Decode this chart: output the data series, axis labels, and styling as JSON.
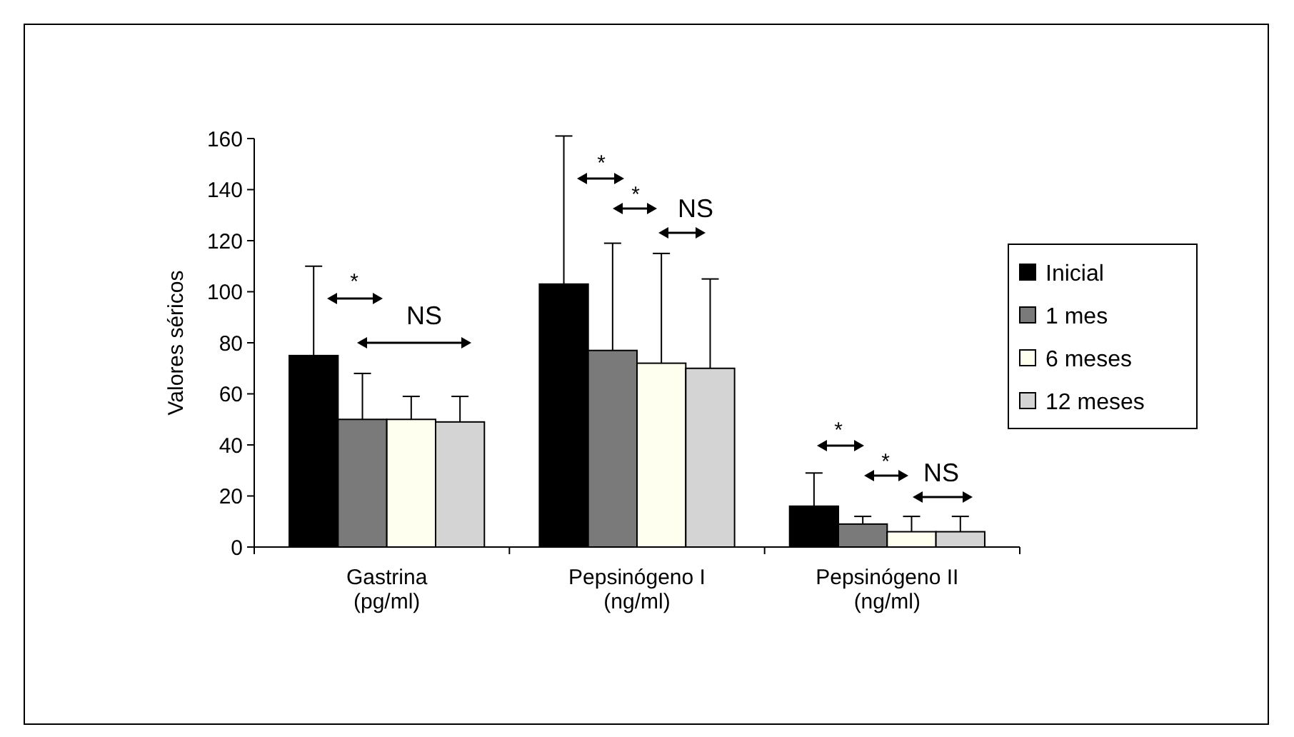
{
  "chart_data": {
    "type": "bar",
    "ylabel": "Valores séricos",
    "categories": [
      "Gastrina\n(pg/ml)",
      "Pepsinógeno I\n(ng/ml)",
      "Pepsinógeno II\n(ng/ml)"
    ],
    "series": [
      {
        "name": "Inicial",
        "color": "#000000",
        "values": [
          75,
          103,
          16
        ],
        "errors": [
          [
            75,
            110
          ],
          [
            103,
            161
          ],
          [
            16,
            29
          ]
        ]
      },
      {
        "name": "1 mes",
        "color": "#7a7a7a",
        "values": [
          50,
          77,
          9
        ],
        "errors": [
          [
            50,
            68
          ],
          [
            77,
            119
          ],
          [
            9,
            12
          ]
        ]
      },
      {
        "name": "6 meses",
        "color": "#fffff0",
        "values": [
          50,
          72,
          6
        ],
        "errors": [
          [
            50,
            59
          ],
          [
            72,
            115
          ],
          [
            6,
            12
          ]
        ]
      },
      {
        "name": "12 meses",
        "color": "#d4d4d4",
        "values": [
          49,
          70,
          6
        ],
        "errors": [
          [
            49,
            59
          ],
          [
            70,
            105
          ],
          [
            6,
            12
          ]
        ]
      }
    ],
    "ylim": [
      0,
      160
    ],
    "yticks": [
      0,
      20,
      40,
      60,
      80,
      100,
      120,
      140,
      160
    ],
    "grid": false,
    "legend": "right",
    "annotations": [
      "*",
      "NS",
      "*",
      "*",
      "NS",
      "*",
      "*",
      "NS"
    ]
  }
}
